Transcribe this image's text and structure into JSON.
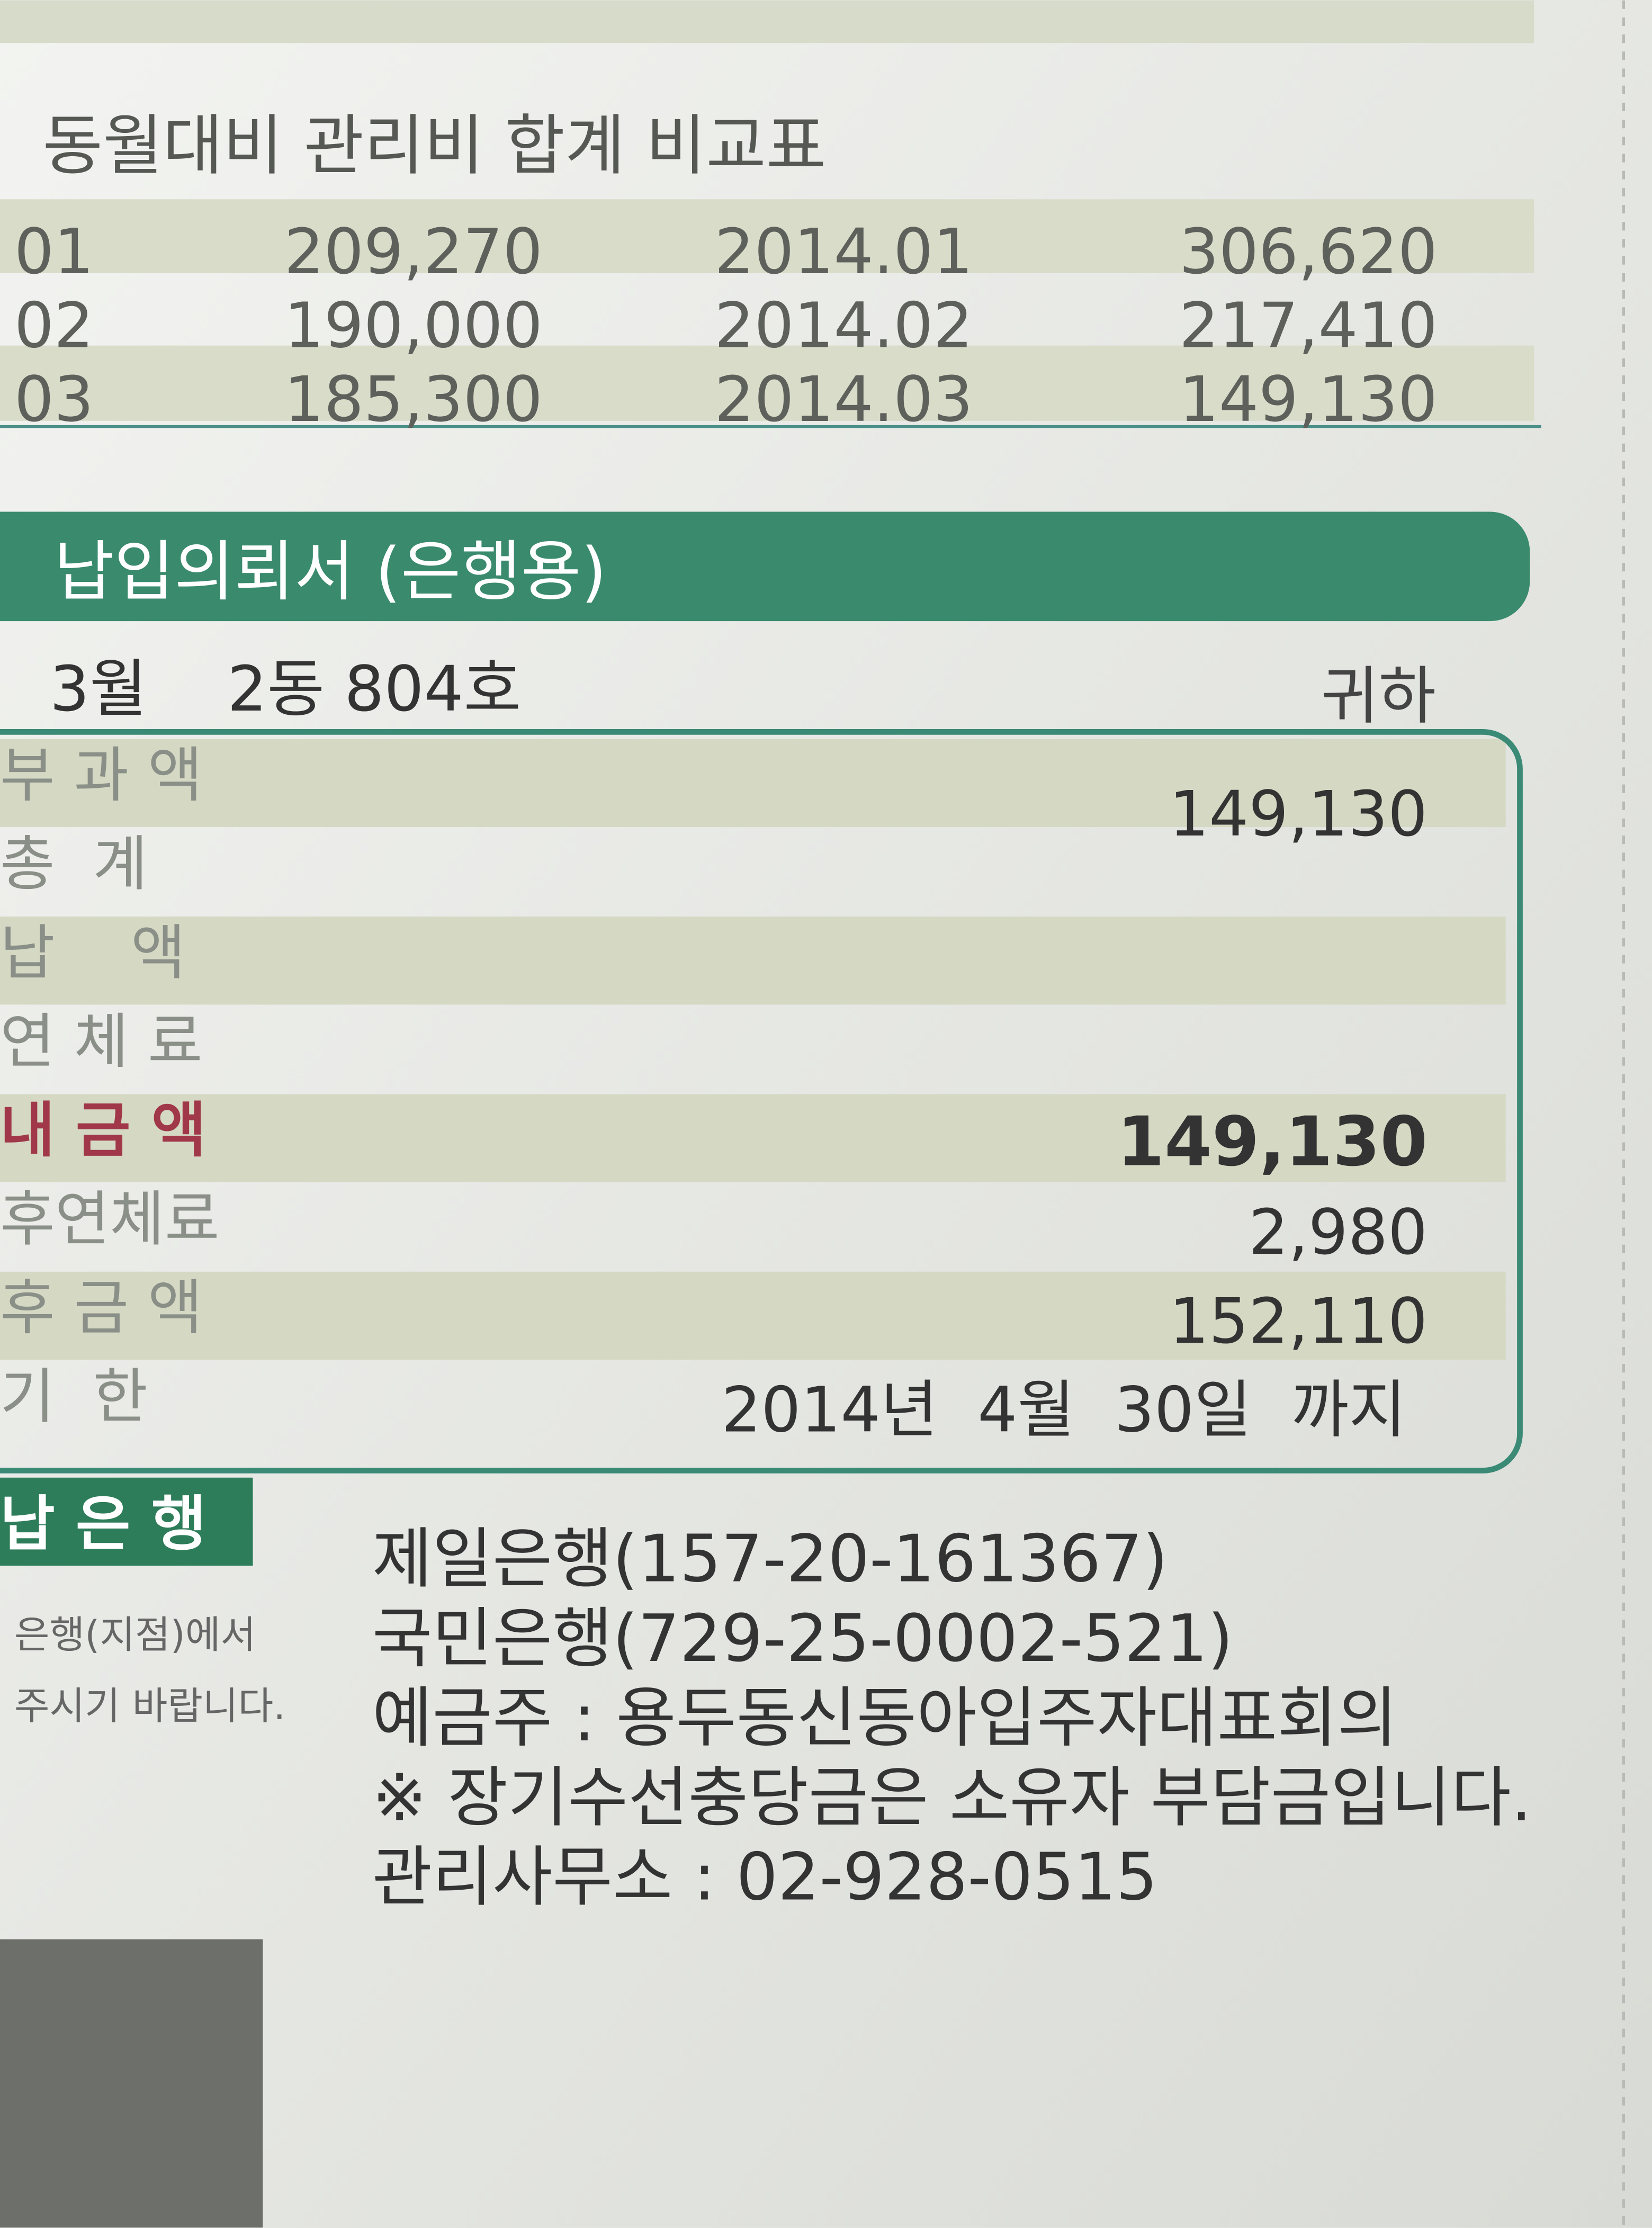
{
  "comparison": {
    "title": "동월대비 관리비 합계 비교표",
    "rows": [
      [
        "01",
        "209,270",
        "2014.01",
        "306,620"
      ],
      [
        "02",
        "190,000",
        "2014.02",
        "217,410"
      ],
      [
        "03",
        "185,300",
        "2014.03",
        "149,130"
      ]
    ]
  },
  "slip": {
    "title": "납입의뢰서 (은행용)",
    "month": "3월",
    "unit": "2동 804호",
    "honorific": "귀하",
    "rows": [
      {
        "label": "부 과 액",
        "value": "149,130"
      },
      {
        "label": "총  계"
      },
      {
        "label": "납    액"
      },
      {
        "label": "연 체 료"
      },
      {
        "label": "내 금 액",
        "value": "149,130"
      },
      {
        "label": "후연체료",
        "value": "2,980"
      },
      {
        "label": "후 금 액",
        "value": "152,110"
      },
      {
        "label": "기  한",
        "value": "2014년  4월  30일  까지"
      }
    ]
  },
  "bank": {
    "label": "납 은 행",
    "note": [
      "은행(지점)에서",
      "주시기 바랍니다."
    ],
    "lines": [
      "제일은행(157-20-161367)",
      "국민은행(729-25-0002-521)",
      "예금주 : 용두동신동아입주자대표회의",
      "※ 장기수선충당금은 소유자 부담금입니다.",
      "관리사무소 : 02-928-0515"
    ]
  }
}
